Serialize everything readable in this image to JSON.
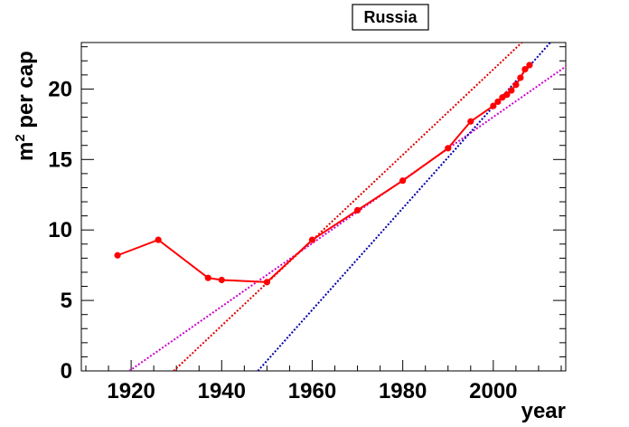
{
  "chart_data": {
    "type": "line",
    "title": "Russia",
    "xlabel": "year",
    "ylabel_base": "m",
    "ylabel_sup": "2",
    "ylabel_rest": " per cap",
    "xlim": [
      1909,
      2016
    ],
    "ylim": [
      0,
      23.3
    ],
    "x_ticks": [
      1920,
      1940,
      1960,
      1980,
      2000
    ],
    "y_ticks": [
      0,
      5,
      10,
      15,
      20
    ],
    "x_tick_labels": [
      "1920",
      "1940",
      "1960",
      "1980",
      "2000"
    ],
    "y_tick_labels": [
      "0",
      "5",
      "10",
      "15",
      "20"
    ],
    "grid": false,
    "series": [
      {
        "color": "#ff0000",
        "style": "solid-markers",
        "x": [
          1917,
          1926,
          1937,
          1940,
          1950,
          1960,
          1970,
          1980,
          1990,
          1995,
          2000,
          2001,
          2002,
          2003,
          2004,
          2005,
          2006,
          2007,
          2008
        ],
        "y": [
          8.2,
          9.3,
          6.6,
          6.45,
          6.3,
          9.3,
          11.4,
          13.5,
          15.8,
          17.7,
          18.8,
          19.1,
          19.4,
          19.6,
          19.9,
          20.3,
          20.8,
          21.4,
          21.7
        ]
      }
    ],
    "fit_lines": [
      {
        "color": "#dd0000",
        "style": "dotted",
        "x": [
          1929.4,
          2006.3
        ],
        "y": [
          0,
          23.3
        ]
      },
      {
        "color": "#cc00cc",
        "style": "dotted",
        "x": [
          1919.6,
          2016
        ],
        "y": [
          0,
          21.6
        ]
      },
      {
        "color": "#0000aa",
        "style": "dotted",
        "x": [
          1948,
          2012.6
        ],
        "y": [
          0,
          23.3
        ]
      }
    ]
  },
  "colors": {
    "data": "#ff0000",
    "fit_red": "#dd0000",
    "fit_magenta": "#cc00cc",
    "fit_blue": "#0000aa",
    "title_border": "#000000"
  }
}
